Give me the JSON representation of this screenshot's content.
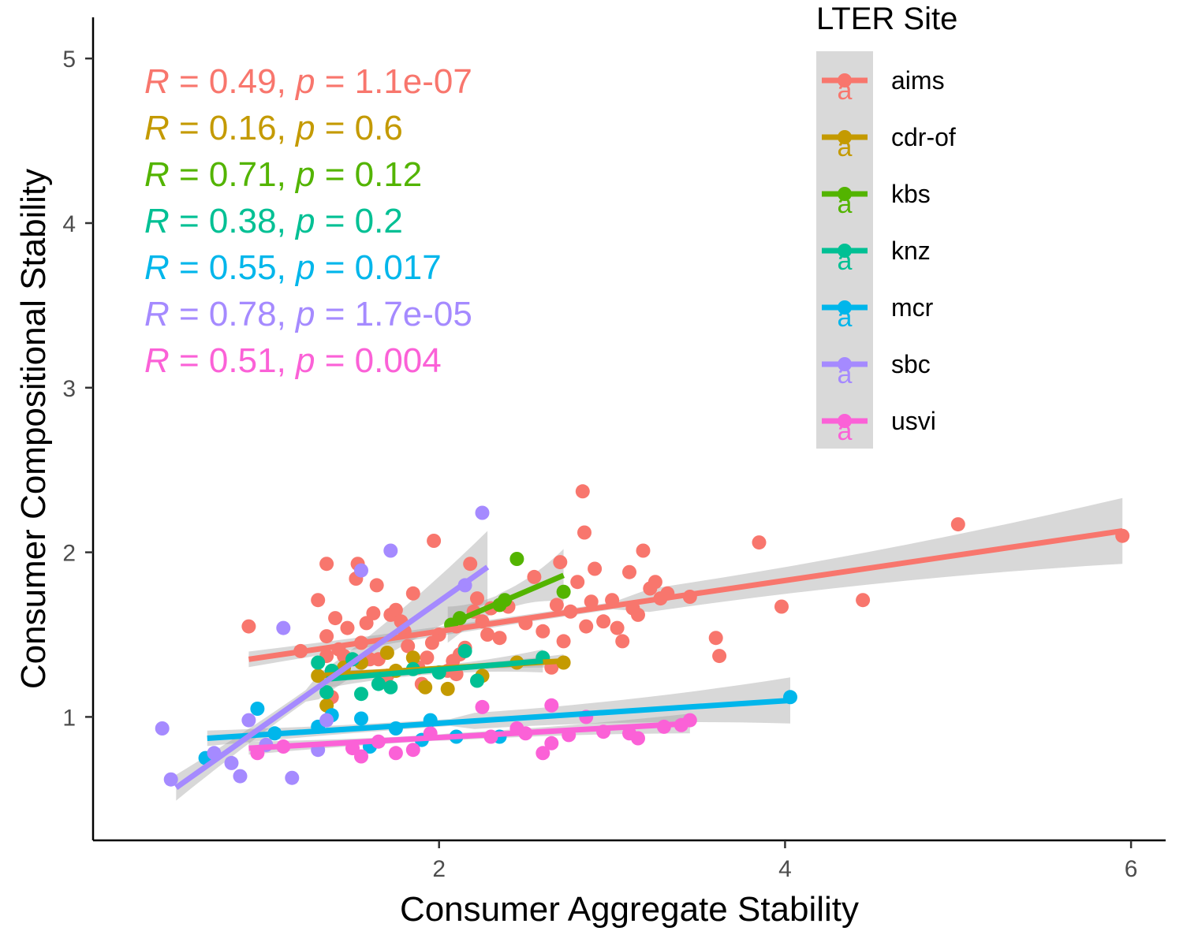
{
  "chart_data": {
    "type": "scatter",
    "xlabel": "Consumer Aggregate Stability",
    "ylabel": "Consumer Compositional Stability",
    "xlim": [
      0.0,
      6.2
    ],
    "ylim": [
      0.25,
      5.25
    ],
    "xticks": [
      {
        "value": 2,
        "label": "2"
      },
      {
        "value": 4,
        "label": "4"
      },
      {
        "value": 6,
        "label": "6"
      }
    ],
    "yticks": [
      {
        "value": 1,
        "label": "1"
      },
      {
        "value": 2,
        "label": "2"
      },
      {
        "value": 3,
        "label": "3"
      },
      {
        "value": 4,
        "label": "4"
      },
      {
        "value": 5,
        "label": "5"
      }
    ],
    "legend": {
      "title": "LTER Site",
      "position": "top-right",
      "key_glyph": "a"
    },
    "series": [
      {
        "name": "aims",
        "color": "#F8766D",
        "stats": {
          "r": "0.49",
          "p": "1.1e-07"
        },
        "fit": {
          "x": [
            0.9,
            5.95
          ],
          "y": [
            1.35,
            2.13
          ]
        },
        "band_halfwidth": [
          0.06,
          0.2
        ],
        "points": [
          [
            0.9,
            1.55
          ],
          [
            1.2,
            1.4
          ],
          [
            1.3,
            1.71
          ],
          [
            1.35,
            1.93
          ],
          [
            1.35,
            1.49
          ],
          [
            1.35,
            1.37
          ],
          [
            1.4,
            1.6
          ],
          [
            1.45,
            1.37
          ],
          [
            1.47,
            1.54
          ],
          [
            1.52,
            1.84
          ],
          [
            1.53,
            1.93
          ],
          [
            1.55,
            1.45
          ],
          [
            1.58,
            1.57
          ],
          [
            1.62,
            1.63
          ],
          [
            1.64,
            1.8
          ],
          [
            1.65,
            1.35
          ],
          [
            1.7,
            1.25
          ],
          [
            1.72,
            1.62
          ],
          [
            1.75,
            1.65
          ],
          [
            1.78,
            1.58
          ],
          [
            1.8,
            1.52
          ],
          [
            1.82,
            1.43
          ],
          [
            1.85,
            1.75
          ],
          [
            1.88,
            1.3
          ],
          [
            1.9,
            1.2
          ],
          [
            1.93,
            1.36
          ],
          [
            1.96,
            1.45
          ],
          [
            1.97,
            2.07
          ],
          [
            2.0,
            1.5
          ],
          [
            2.05,
            1.28
          ],
          [
            2.08,
            1.34
          ],
          [
            2.1,
            1.55
          ],
          [
            2.12,
            1.38
          ],
          [
            2.15,
            1.42
          ],
          [
            2.18,
            1.93
          ],
          [
            2.2,
            1.64
          ],
          [
            2.22,
            1.72
          ],
          [
            2.25,
            1.58
          ],
          [
            2.28,
            1.5
          ],
          [
            2.3,
            1.66
          ],
          [
            2.35,
            1.48
          ],
          [
            2.4,
            1.67
          ],
          [
            2.5,
            1.57
          ],
          [
            2.55,
            1.85
          ],
          [
            2.6,
            1.52
          ],
          [
            2.65,
            1.3
          ],
          [
            2.68,
            1.68
          ],
          [
            2.7,
            1.94
          ],
          [
            2.72,
            1.46
          ],
          [
            2.76,
            1.64
          ],
          [
            2.8,
            1.82
          ],
          [
            2.83,
            2.37
          ],
          [
            2.85,
            1.55
          ],
          [
            2.88,
            1.7
          ],
          [
            2.9,
            1.9
          ],
          [
            2.95,
            1.58
          ],
          [
            3.0,
            1.71
          ],
          [
            3.03,
            1.54
          ],
          [
            3.06,
            1.46
          ],
          [
            3.1,
            1.88
          ],
          [
            3.12,
            1.66
          ],
          [
            3.15,
            1.62
          ],
          [
            3.18,
            2.01
          ],
          [
            3.22,
            1.78
          ],
          [
            3.25,
            1.82
          ],
          [
            3.28,
            1.72
          ],
          [
            3.32,
            1.75
          ],
          [
            3.45,
            1.73
          ],
          [
            3.6,
            1.48
          ],
          [
            3.62,
            1.37
          ],
          [
            3.85,
            2.06
          ],
          [
            3.98,
            1.67
          ],
          [
            4.45,
            1.71
          ],
          [
            5.0,
            2.17
          ],
          [
            5.95,
            2.1
          ],
          [
            1.38,
            1.12
          ],
          [
            1.42,
            1.41
          ],
          [
            1.6,
            1.35
          ],
          [
            2.84,
            2.12
          ],
          [
            2.1,
            1.26
          ]
        ]
      },
      {
        "name": "cdr-of",
        "color": "#C49A00",
        "stats": {
          "r": "0.16",
          "p": "0.6"
        },
        "fit": {
          "x": [
            1.3,
            2.72
          ],
          "y": [
            1.25,
            1.34
          ]
        },
        "band_halfwidth": [
          0.04,
          0.04
        ],
        "points": [
          [
            1.3,
            1.25
          ],
          [
            1.35,
            1.07
          ],
          [
            1.45,
            1.3
          ],
          [
            1.55,
            1.33
          ],
          [
            1.7,
            1.39
          ],
          [
            1.75,
            1.28
          ],
          [
            1.85,
            1.36
          ],
          [
            1.92,
            1.18
          ],
          [
            2.05,
            1.17
          ],
          [
            2.25,
            1.25
          ],
          [
            2.45,
            1.33
          ],
          [
            2.72,
            1.33
          ]
        ]
      },
      {
        "name": "kbs",
        "color": "#53B400",
        "stats": {
          "r": "0.71",
          "p": "0.12"
        },
        "fit": {
          "x": [
            2.05,
            2.72
          ],
          "y": [
            1.56,
            1.86
          ]
        },
        "band_halfwidth": [
          0.14,
          0.16
        ],
        "points": [
          [
            2.07,
            1.56
          ],
          [
            2.12,
            1.6
          ],
          [
            2.35,
            1.68
          ],
          [
            2.38,
            1.71
          ],
          [
            2.45,
            1.96
          ],
          [
            2.72,
            1.76
          ]
        ]
      },
      {
        "name": "knz",
        "color": "#00C094",
        "stats": {
          "r": "0.38",
          "p": "0.2"
        },
        "fit": {
          "x": [
            1.35,
            2.6
          ],
          "y": [
            1.23,
            1.34
          ]
        },
        "band_halfwidth": [
          0.07,
          0.07
        ],
        "points": [
          [
            1.3,
            1.33
          ],
          [
            1.35,
            1.15
          ],
          [
            1.38,
            1.28
          ],
          [
            1.5,
            1.35
          ],
          [
            1.55,
            1.14
          ],
          [
            1.65,
            1.2
          ],
          [
            1.72,
            1.18
          ],
          [
            1.85,
            1.29
          ],
          [
            2.0,
            1.27
          ],
          [
            2.15,
            1.4
          ],
          [
            2.22,
            1.22
          ],
          [
            2.6,
            1.36
          ]
        ]
      },
      {
        "name": "mcr",
        "color": "#00B6EB",
        "stats": {
          "r": "0.55",
          "p": "0.017"
        },
        "fit": {
          "x": [
            0.66,
            4.03
          ],
          "y": [
            0.87,
            1.1
          ]
        },
        "band_halfwidth": [
          0.06,
          0.14
        ],
        "points": [
          [
            0.65,
            0.75
          ],
          [
            0.95,
            1.05
          ],
          [
            1.05,
            0.9
          ],
          [
            1.3,
            0.94
          ],
          [
            1.38,
            1.01
          ],
          [
            1.55,
            0.99
          ],
          [
            1.6,
            0.82
          ],
          [
            1.75,
            0.93
          ],
          [
            1.9,
            0.86
          ],
          [
            1.95,
            0.98
          ],
          [
            2.1,
            0.88
          ],
          [
            2.35,
            0.88
          ],
          [
            4.03,
            1.12
          ]
        ]
      },
      {
        "name": "sbc",
        "color": "#A58AFF",
        "stats": {
          "r": "0.78",
          "p": "1.7e-05"
        },
        "fit": {
          "x": [
            0.48,
            2.28
          ],
          "y": [
            0.57,
            1.91
          ]
        },
        "band_halfwidth": [
          0.1,
          0.22
        ],
        "points": [
          [
            0.4,
            0.93
          ],
          [
            0.45,
            0.62
          ],
          [
            0.7,
            0.78
          ],
          [
            0.8,
            0.72
          ],
          [
            0.85,
            0.64
          ],
          [
            0.9,
            0.98
          ],
          [
            1.0,
            0.83
          ],
          [
            1.1,
            1.54
          ],
          [
            1.15,
            0.63
          ],
          [
            1.3,
            0.8
          ],
          [
            1.35,
            0.98
          ],
          [
            1.55,
            1.89
          ],
          [
            1.72,
            2.01
          ],
          [
            2.15,
            1.8
          ],
          [
            2.25,
            2.24
          ]
        ]
      },
      {
        "name": "usvi",
        "color": "#FB61D7",
        "stats": {
          "r": "0.51",
          "p": "0.004"
        },
        "fit": {
          "x": [
            0.9,
            3.45
          ],
          "y": [
            0.81,
            0.96
          ]
        },
        "band_halfwidth": [
          0.05,
          0.06
        ],
        "points": [
          [
            0.95,
            0.78
          ],
          [
            1.1,
            0.82
          ],
          [
            1.5,
            0.81
          ],
          [
            1.55,
            0.76
          ],
          [
            1.65,
            0.85
          ],
          [
            1.75,
            0.78
          ],
          [
            1.85,
            0.8
          ],
          [
            1.95,
            0.9
          ],
          [
            2.25,
            1.06
          ],
          [
            2.3,
            0.88
          ],
          [
            2.5,
            0.9
          ],
          [
            2.6,
            0.78
          ],
          [
            2.65,
            1.07
          ],
          [
            2.75,
            0.89
          ],
          [
            2.85,
            1.0
          ],
          [
            2.95,
            0.91
          ],
          [
            3.1,
            0.9
          ],
          [
            3.15,
            0.87
          ],
          [
            3.3,
            0.94
          ],
          [
            3.4,
            0.95
          ],
          [
            3.45,
            0.98
          ],
          [
            2.45,
            0.93
          ],
          [
            2.65,
            0.84
          ]
        ]
      }
    ]
  }
}
